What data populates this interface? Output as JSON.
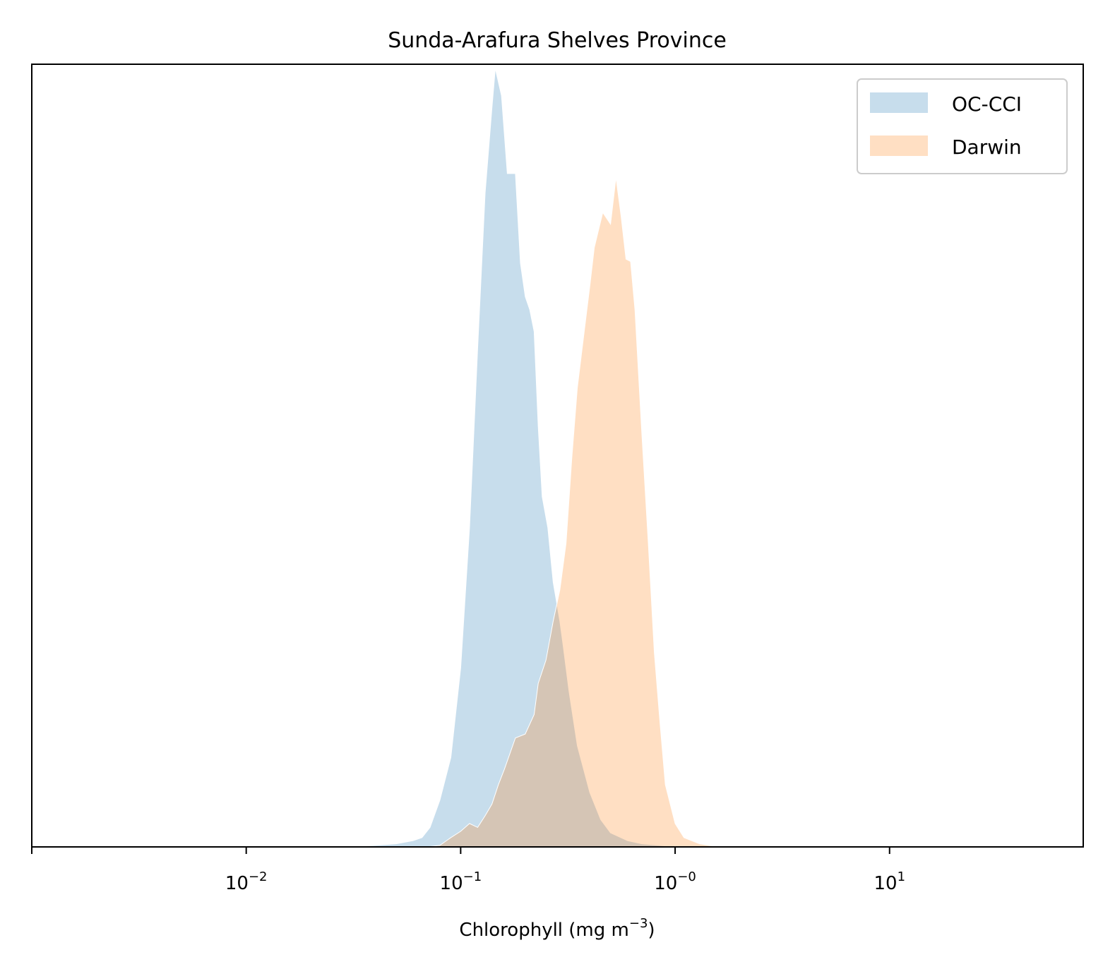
{
  "chart_data": {
    "type": "area",
    "title": "Sunda-Arafura Shelves Province",
    "xlabel": "Chlorophyll  (mg m",
    "xlabel_sup": "−3",
    "xlabel_close": ")",
    "ylabel": "",
    "x_scale": "log",
    "xlim": [
      0.001,
      80
    ],
    "ylim": [
      0,
      1.0
    ],
    "grid": false,
    "legend_position": "top-right",
    "x_ticks": [
      {
        "value": 0.001,
        "base": "",
        "exp": ""
      },
      {
        "value": 0.01,
        "base": "10",
        "exp": "−2"
      },
      {
        "value": 0.1,
        "base": "10",
        "exp": "−1"
      },
      {
        "value": 1,
        "base": "10",
        "exp": "−0"
      },
      {
        "value": 10,
        "base": "10",
        "exp": "1"
      }
    ],
    "series": [
      {
        "name": "OC-CCI",
        "color": "#1f77b4",
        "opacity": 0.25,
        "points": [
          [
            0.03,
            0.0
          ],
          [
            0.04,
            0.002
          ],
          [
            0.05,
            0.004
          ],
          [
            0.06,
            0.008
          ],
          [
            0.066,
            0.012
          ],
          [
            0.072,
            0.025
          ],
          [
            0.08,
            0.06
          ],
          [
            0.09,
            0.115
          ],
          [
            0.1,
            0.23
          ],
          [
            0.11,
            0.41
          ],
          [
            0.12,
            0.64
          ],
          [
            0.13,
            0.84
          ],
          [
            0.14,
            0.95
          ],
          [
            0.145,
            1.0
          ],
          [
            0.155,
            0.965
          ],
          [
            0.165,
            0.865
          ],
          [
            0.18,
            0.865
          ],
          [
            0.19,
            0.75
          ],
          [
            0.2,
            0.707
          ],
          [
            0.21,
            0.69
          ],
          [
            0.22,
            0.662
          ],
          [
            0.23,
            0.54
          ],
          [
            0.24,
            0.45
          ],
          [
            0.255,
            0.41
          ],
          [
            0.27,
            0.34
          ],
          [
            0.29,
            0.29
          ],
          [
            0.3,
            0.26
          ],
          [
            0.32,
            0.2
          ],
          [
            0.35,
            0.13
          ],
          [
            0.4,
            0.07
          ],
          [
            0.45,
            0.035
          ],
          [
            0.5,
            0.018
          ],
          [
            0.6,
            0.008
          ],
          [
            0.7,
            0.004
          ],
          [
            0.85,
            0.002
          ],
          [
            1.0,
            0.0
          ]
        ]
      },
      {
        "name": "Darwin",
        "color": "#ff7f0e",
        "opacity": 0.25,
        "points": [
          [
            0.07,
            0.0
          ],
          [
            0.08,
            0.002
          ],
          [
            0.09,
            0.012
          ],
          [
            0.1,
            0.02
          ],
          [
            0.11,
            0.03
          ],
          [
            0.12,
            0.025
          ],
          [
            0.13,
            0.04
          ],
          [
            0.14,
            0.055
          ],
          [
            0.15,
            0.08
          ],
          [
            0.16,
            0.1
          ],
          [
            0.18,
            0.14
          ],
          [
            0.2,
            0.145
          ],
          [
            0.22,
            0.17
          ],
          [
            0.23,
            0.21
          ],
          [
            0.25,
            0.24
          ],
          [
            0.27,
            0.29
          ],
          [
            0.29,
            0.33
          ],
          [
            0.31,
            0.39
          ],
          [
            0.33,
            0.5
          ],
          [
            0.35,
            0.59
          ],
          [
            0.38,
            0.67
          ],
          [
            0.4,
            0.72
          ],
          [
            0.42,
            0.77
          ],
          [
            0.46,
            0.815
          ],
          [
            0.5,
            0.8
          ],
          [
            0.53,
            0.86
          ],
          [
            0.56,
            0.81
          ],
          [
            0.59,
            0.755
          ],
          [
            0.62,
            0.752
          ],
          [
            0.65,
            0.69
          ],
          [
            0.7,
            0.53
          ],
          [
            0.75,
            0.39
          ],
          [
            0.8,
            0.25
          ],
          [
            0.85,
            0.16
          ],
          [
            0.9,
            0.08
          ],
          [
            1.0,
            0.03
          ],
          [
            1.1,
            0.012
          ],
          [
            1.3,
            0.004
          ],
          [
            1.6,
            0.0
          ]
        ]
      }
    ]
  }
}
